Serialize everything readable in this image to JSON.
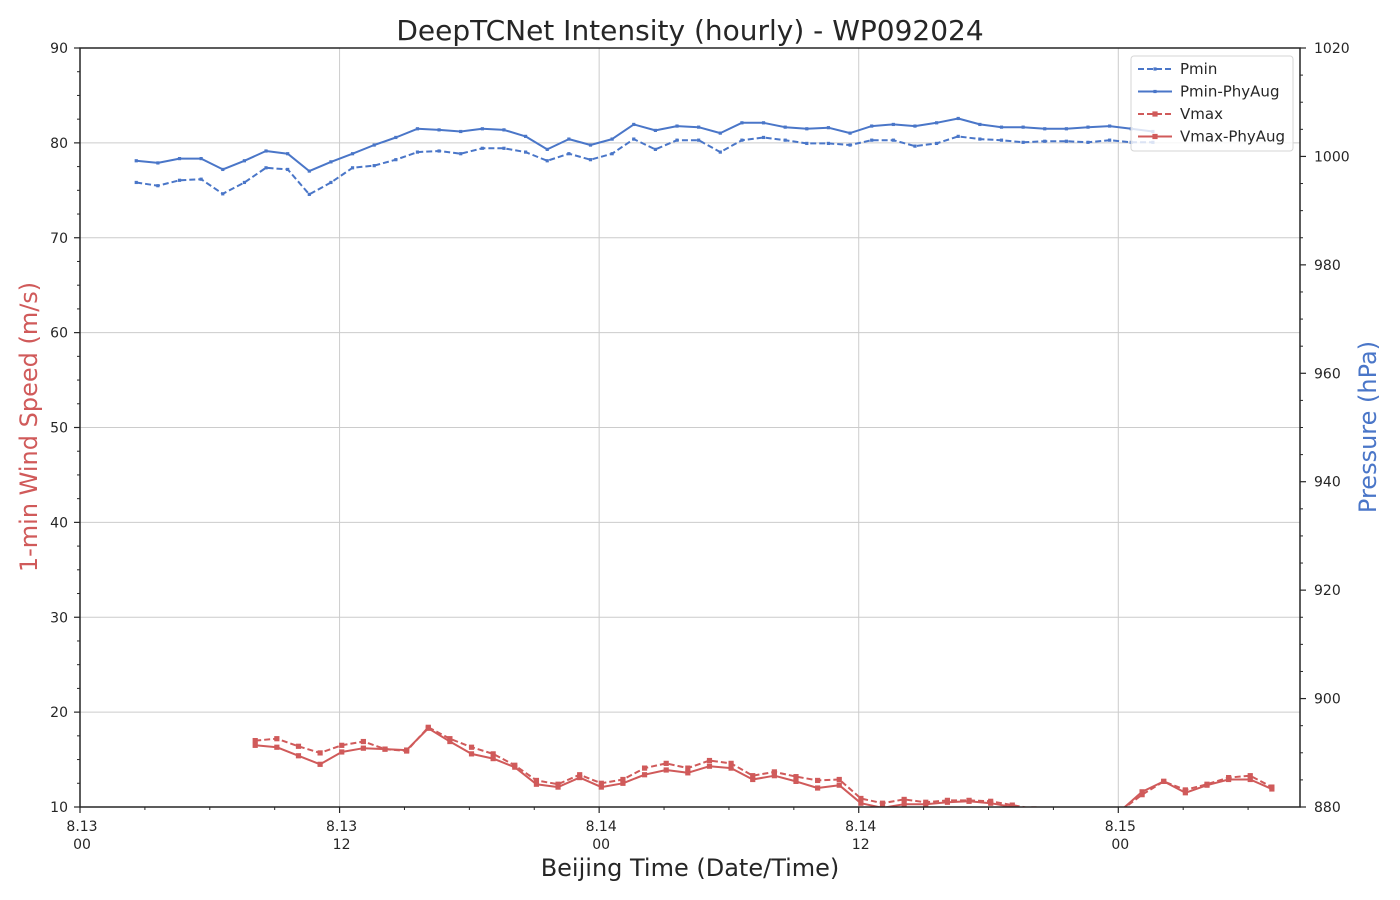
{
  "chart_data": {
    "type": "line",
    "title": "DeepTCNet Intensity (hourly) - WP092024",
    "xlabel": "Beijing Time (Date/Time)",
    "ylabel_left": "1-min Wind Speed (m/s)",
    "ylabel_right": "Pressure (hPa)",
    "x_unit": "hours since 8.13 00",
    "xlim": [
      0,
      56.4
    ],
    "ylim_left": [
      10,
      90
    ],
    "ylim_right": [
      880,
      1020
    ],
    "grid": true,
    "legend_position": "top-right",
    "x_ticks": [
      {
        "value": 0,
        "date": "8.13",
        "time": "00"
      },
      {
        "value": 12,
        "date": "8.13",
        "time": "12"
      },
      {
        "value": 24,
        "date": "8.14",
        "time": "00"
      },
      {
        "value": 36,
        "date": "8.14",
        "time": "12"
      },
      {
        "value": 48,
        "date": "8.15",
        "time": "00"
      }
    ],
    "y_ticks_left": [
      "10",
      "20",
      "30",
      "40",
      "50",
      "60",
      "70",
      "80",
      "90"
    ],
    "y_ticks_right": [
      "880",
      "900",
      "920",
      "940",
      "960",
      "980",
      "1000",
      "1020"
    ],
    "colors": {
      "wind": "#d05a5a",
      "pressure": "#4a76c8"
    },
    "series": [
      {
        "name": "Pmin",
        "axis": "right",
        "style": "dashed",
        "x_start": 2.6,
        "values": [
          995.2,
          994.6,
          995.6,
          995.8,
          993.1,
          995.2,
          997.9,
          997.6,
          993.0,
          995.2,
          997.9,
          998.3,
          999.4,
          1000.8,
          1001.0,
          1000.5,
          1001.5,
          1001.5,
          1000.8,
          999.2,
          1000.5,
          999.4,
          1000.5,
          1003.2,
          1001.3,
          1003.0,
          1003.0,
          1000.8,
          1003.0,
          1003.5,
          1003.0,
          1002.4,
          1002.4,
          1002.1,
          1003.0,
          1003.0,
          1001.9,
          1002.4,
          1003.7,
          1003.2,
          1003.0,
          1002.6,
          1002.8,
          1002.8,
          1002.6,
          1003.0,
          1002.6,
          1002.6
        ]
      },
      {
        "name": "Pmin-PhyAug",
        "axis": "right",
        "style": "solid",
        "x_start": 2.6,
        "values": [
          999.2,
          998.8,
          999.6,
          999.6,
          997.6,
          999.2,
          1001.0,
          1000.5,
          997.3,
          999.0,
          1000.5,
          1002.1,
          1003.5,
          1005.1,
          1004.9,
          1004.6,
          1005.1,
          1004.9,
          1003.7,
          1001.3,
          1003.2,
          1002.1,
          1003.2,
          1005.9,
          1004.8,
          1005.6,
          1005.4,
          1004.3,
          1006.2,
          1006.2,
          1005.4,
          1005.1,
          1005.3,
          1004.3,
          1005.6,
          1005.9,
          1005.6,
          1006.2,
          1007.0,
          1005.9,
          1005.4,
          1005.4,
          1005.1,
          1005.1,
          1005.4,
          1005.6,
          1005.1,
          1004.6
        ]
      },
      {
        "name": "Vmax",
        "axis": "left",
        "style": "dashed",
        "x_start": 8.1,
        "values": [
          17.0,
          17.2,
          16.4,
          15.7,
          16.5,
          16.9,
          16.1,
          15.9,
          18.4,
          17.2,
          16.3,
          15.6,
          14.4,
          12.8,
          12.4,
          13.4,
          12.5,
          12.9,
          14.1,
          14.6,
          14.1,
          14.9,
          14.6,
          13.3,
          13.7,
          13.2,
          12.8,
          12.9,
          10.9,
          10.4,
          10.8,
          10.5,
          10.7,
          10.7,
          10.6,
          10.2,
          9.8,
          9.6,
          9.4,
          9.5,
          9.6,
          11.3,
          12.7,
          11.8,
          12.4,
          13.1,
          13.3,
          12.1
        ]
      },
      {
        "name": "Vmax-PhyAug",
        "axis": "left",
        "style": "solid",
        "x_start": 8.1,
        "values": [
          16.5,
          16.3,
          15.4,
          14.5,
          15.8,
          16.2,
          16.1,
          16.0,
          18.3,
          16.9,
          15.6,
          15.1,
          14.2,
          12.4,
          12.1,
          13.1,
          12.1,
          12.5,
          13.4,
          13.9,
          13.6,
          14.3,
          14.1,
          12.9,
          13.3,
          12.7,
          12.0,
          12.3,
          10.4,
          9.9,
          10.3,
          10.3,
          10.5,
          10.6,
          10.4,
          10.0,
          9.7,
          9.5,
          9.4,
          9.5,
          9.6,
          11.6,
          12.7,
          11.5,
          12.3,
          12.9,
          12.9,
          11.9
        ]
      }
    ]
  }
}
